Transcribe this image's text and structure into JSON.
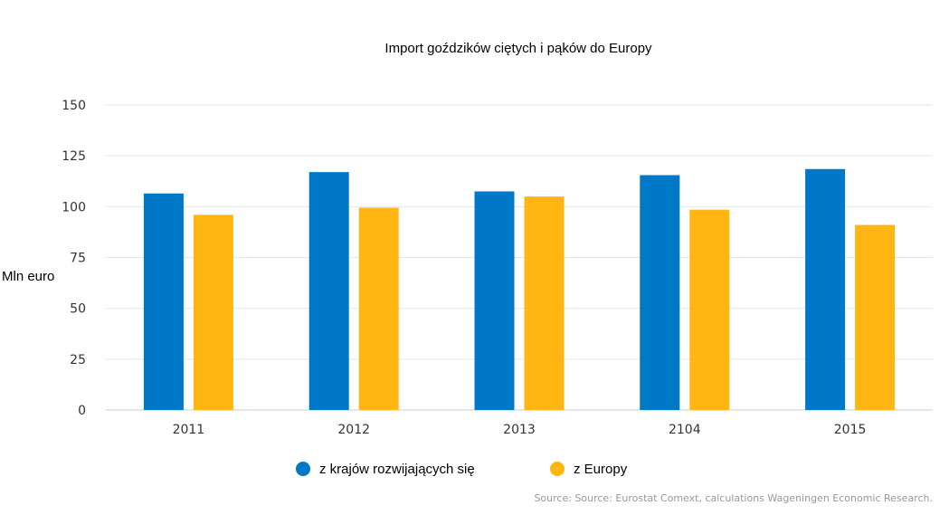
{
  "chart_data": {
    "type": "bar",
    "title": "Import goździków ciętych i pąków do Europy",
    "ylabel": "Mln euro",
    "xlabel": "",
    "categories": [
      "2011",
      "2012",
      "2013",
      "2104",
      "2015"
    ],
    "series": [
      {
        "name": "z krajów rozwijających się",
        "color": "#0078c8",
        "values": [
          106.5,
          117,
          107.5,
          115.5,
          118.5
        ]
      },
      {
        "name": "z Europy",
        "color": "#ffb612",
        "values": [
          96,
          99.5,
          105,
          98.5,
          91
        ]
      }
    ],
    "ylim": [
      0,
      150
    ],
    "yticks": [
      "0",
      "25",
      "50",
      "75",
      "100",
      "125",
      "150"
    ],
    "grid": true,
    "legend_position": "bottom",
    "source": "Source: Source: Eurostat Comext, calculations Wageningen Economic Research."
  }
}
